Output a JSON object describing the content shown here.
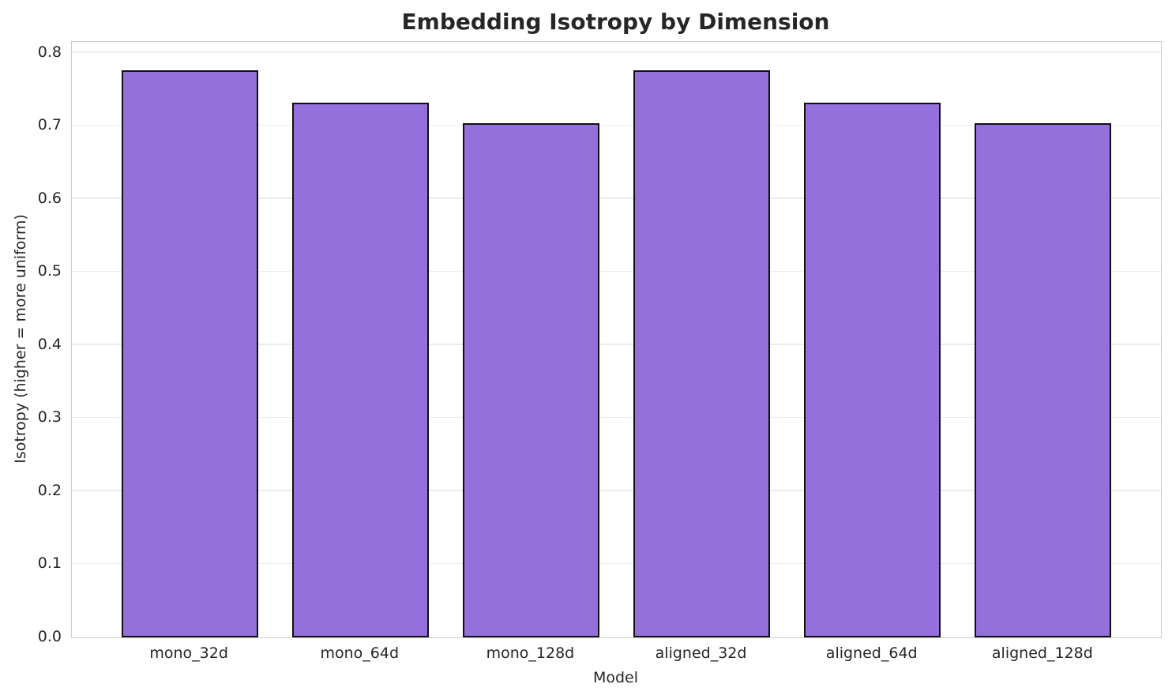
{
  "chart_data": {
    "type": "bar",
    "title": "Embedding Isotropy by Dimension",
    "xlabel": "Model",
    "ylabel": "Isotropy (higher = more uniform)",
    "categories": [
      "mono_32d",
      "mono_64d",
      "mono_128d",
      "aligned_32d",
      "aligned_64d",
      "aligned_128d"
    ],
    "values": [
      0.776,
      0.732,
      0.703,
      0.776,
      0.732,
      0.703
    ],
    "ylim": [
      0,
      0.8148
    ],
    "yticks": [
      0.0,
      0.1,
      0.2,
      0.3,
      0.4,
      0.5,
      0.6,
      0.7,
      0.8
    ],
    "ytick_labels": [
      "0.0",
      "0.1",
      "0.2",
      "0.3",
      "0.4",
      "0.5",
      "0.6",
      "0.7",
      "0.8"
    ],
    "xlim_units": [
      -0.69,
      5.69
    ],
    "bar_width_units": 0.8,
    "grid": "horizontal-only",
    "legend": "none",
    "bar_color": "#9370DB",
    "bar_edge_color": "#111111",
    "grid_color": "#ececec",
    "spine_color": "#cccccc",
    "text_color": "#262626",
    "background_color": "#ffffff"
  }
}
